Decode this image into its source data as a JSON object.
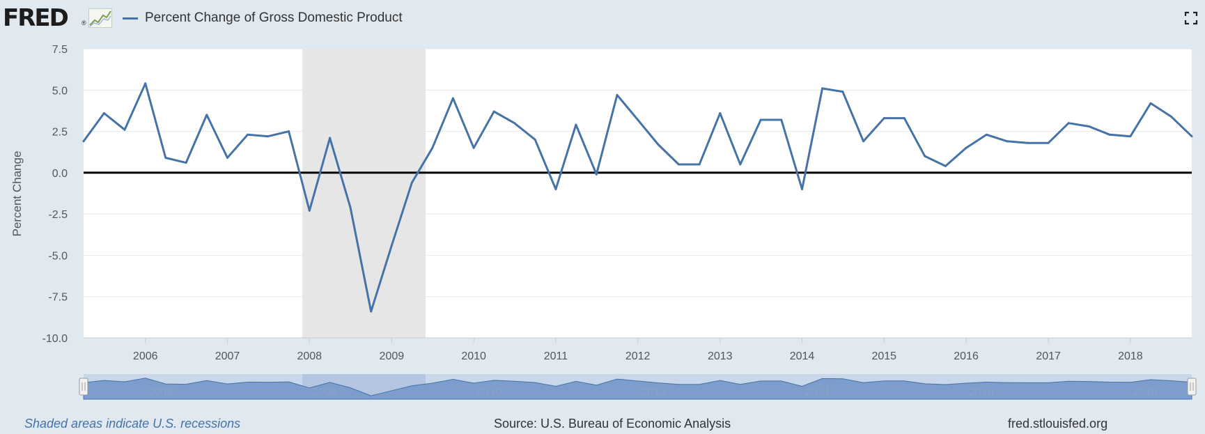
{
  "header": {
    "logo_text": "FRED",
    "logo_mark": "®",
    "legend_label": "Percent Change of Gross Domestic Product"
  },
  "icons": {
    "fullscreen": "fullscreen-icon",
    "logo_graph": "line-graph-icon"
  },
  "colors": {
    "series": "#4572a7",
    "recession": "#e6e6e6",
    "zero_line": "#000000",
    "navigator": "#7d9dcd"
  },
  "footer": {
    "recession_note": "Shaded areas indicate U.S. recessions",
    "source": "Source: U.S. Bureau of Economic Analysis",
    "site": "fred.stlouisfed.org"
  },
  "chart_data": {
    "type": "line",
    "title": "",
    "ylabel": "Percent Change",
    "xlabel": "",
    "ylim": [
      -10,
      7.5
    ],
    "xlim": [
      "2005-04-01",
      "2018-10-01"
    ],
    "y_ticks": [
      "7.5",
      "5.0",
      "2.5",
      "0.0",
      "-2.5",
      "-5.0",
      "-7.5",
      "-10.0"
    ],
    "x_ticks": [
      "2006",
      "2007",
      "2008",
      "2009",
      "2010",
      "2011",
      "2012",
      "2013",
      "2014",
      "2015",
      "2016",
      "2017",
      "2018"
    ],
    "navigator_labels": [
      "2006",
      "2008",
      "2010",
      "2012",
      "2014",
      "2016",
      "2018"
    ],
    "grid": true,
    "zero_line": true,
    "recessions": [
      {
        "start": "2007-12-01",
        "end": "2009-06-01"
      }
    ],
    "series": [
      {
        "name": "Percent Change of Gross Domestic Product",
        "x": [
          "2005-04-01",
          "2005-07-01",
          "2005-10-01",
          "2006-01-01",
          "2006-04-01",
          "2006-07-01",
          "2006-10-01",
          "2007-01-01",
          "2007-04-01",
          "2007-07-01",
          "2007-10-01",
          "2008-01-01",
          "2008-04-01",
          "2008-07-01",
          "2008-10-01",
          "2009-01-01",
          "2009-04-01",
          "2009-07-01",
          "2009-10-01",
          "2010-01-01",
          "2010-04-01",
          "2010-07-01",
          "2010-10-01",
          "2011-01-01",
          "2011-04-01",
          "2011-07-01",
          "2011-10-01",
          "2012-01-01",
          "2012-04-01",
          "2012-07-01",
          "2012-10-01",
          "2013-01-01",
          "2013-04-01",
          "2013-07-01",
          "2013-10-01",
          "2014-01-01",
          "2014-04-01",
          "2014-07-01",
          "2014-10-01",
          "2015-01-01",
          "2015-04-01",
          "2015-07-01",
          "2015-10-01",
          "2016-01-01",
          "2016-04-01",
          "2016-07-01",
          "2016-10-01",
          "2017-01-01",
          "2017-04-01",
          "2017-07-01",
          "2017-10-01",
          "2018-01-01",
          "2018-04-01",
          "2018-07-01",
          "2018-10-01"
        ],
        "values": [
          1.9,
          3.6,
          2.6,
          5.4,
          0.9,
          0.6,
          3.5,
          0.9,
          2.3,
          2.2,
          2.5,
          -2.3,
          2.1,
          -2.1,
          -8.4,
          -4.4,
          -0.6,
          1.5,
          4.5,
          1.5,
          3.7,
          3.0,
          2.0,
          -1.0,
          2.9,
          -0.1,
          4.7,
          3.2,
          1.7,
          0.5,
          0.5,
          3.6,
          0.5,
          3.2,
          3.2,
          -1.0,
          5.1,
          4.9,
          1.9,
          3.3,
          3.3,
          1.0,
          0.4,
          1.5,
          2.3,
          1.9,
          1.8,
          1.8,
          3.0,
          2.8,
          2.3,
          2.2,
          4.2,
          3.4,
          2.2
        ]
      }
    ]
  }
}
